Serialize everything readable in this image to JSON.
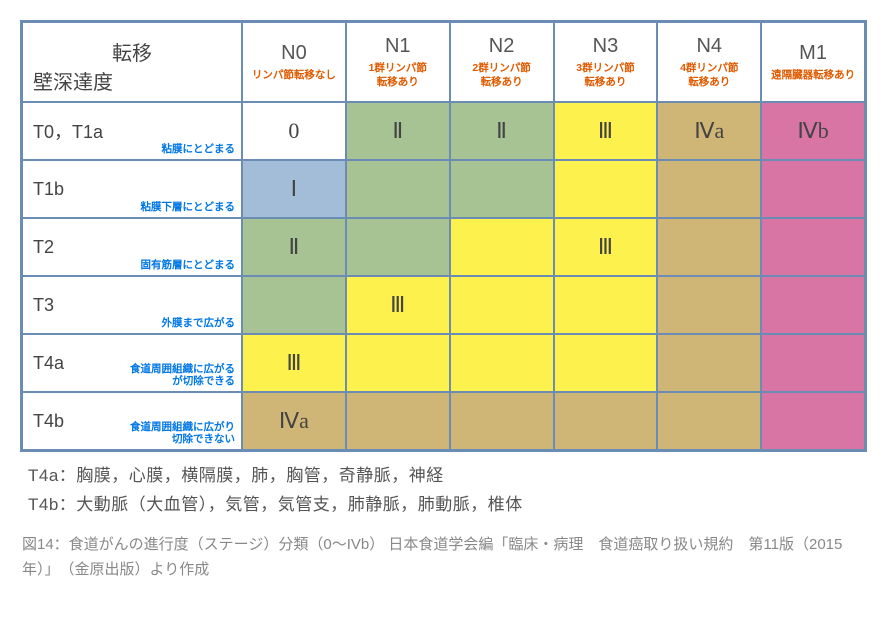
{
  "columns": [
    {
      "main": "N0",
      "sub": "リンパ節転移なし"
    },
    {
      "main": "N1",
      "sub": "1群リンパ節\n転移あり"
    },
    {
      "main": "N2",
      "sub": "2群リンパ節\n転移あり"
    },
    {
      "main": "N3",
      "sub": "3群リンパ節\n転移あり"
    },
    {
      "main": "N4",
      "sub": "4群リンパ節\n転移あり"
    },
    {
      "main": "M1",
      "sub": "遠隔臓器転移あり"
    }
  ],
  "corner": {
    "top": "転移",
    "bot": "壁深達度"
  },
  "rows": [
    {
      "label": "T0，T1a",
      "sub": "粘膜にとどまる"
    },
    {
      "label": "T1b",
      "sub": "粘膜下層にとどまる"
    },
    {
      "label": "T2",
      "sub": "固有筋層にとどまる"
    },
    {
      "label": "T3",
      "sub": "外膜まで広がる"
    },
    {
      "label": "T4a",
      "sub": "食道周囲組織に広がる\nが切除できる"
    },
    {
      "label": "T4b",
      "sub": "食道周囲組織に広がり\n切除できない"
    }
  ],
  "stages": {
    "r0c0": "0",
    "r0c1": "Ⅱ",
    "r0c2": "Ⅱ",
    "r0c3": "Ⅲ",
    "r0c4": "Ⅳa",
    "r0c5": "Ⅳb",
    "r1c0": "Ⅰ",
    "r2c0": "Ⅱ",
    "r2c3": "Ⅲ",
    "r3c1": "Ⅲ",
    "r4c0": "Ⅲ",
    "r5c0": "Ⅳa"
  },
  "colors": {
    "white": "#ffffff",
    "green": "#a7c394",
    "blue": "#a3bdd9",
    "yellow": "#fdf14d",
    "tan": "#d0b676",
    "pink": "#d975a5",
    "border": "#6b8cb3",
    "hdr_main": "#555555",
    "hdr_sub": "#e05a00",
    "row_sub": "#0077e6",
    "caption": "#888888"
  },
  "cell_bg": [
    [
      "white",
      "green",
      "green",
      "yellow",
      "tan",
      "pink"
    ],
    [
      "blue",
      "green",
      "green",
      "yellow",
      "tan",
      "pink"
    ],
    [
      "green",
      "green",
      "yellow",
      "yellow",
      "tan",
      "pink"
    ],
    [
      "green",
      "yellow",
      "yellow",
      "yellow",
      "tan",
      "pink"
    ],
    [
      "yellow",
      "yellow",
      "yellow",
      "yellow",
      "tan",
      "pink"
    ],
    [
      "tan",
      "tan",
      "tan",
      "tan",
      "tan",
      "pink"
    ]
  ],
  "footnotes": [
    "T4a：胸膜，心膜，横隔膜，肺，胸管，奇静脈，神経",
    "T4b：大動脈（大血管），気管，気管支，肺静脈，肺動脈，椎体"
  ],
  "caption": "図14：食道がんの進行度（ステージ）分類（0～IVb） 日本食道学会編「臨床・病理　食道癌取り扱い規約　第11版（2015年）」　（金原出版）より作成"
}
